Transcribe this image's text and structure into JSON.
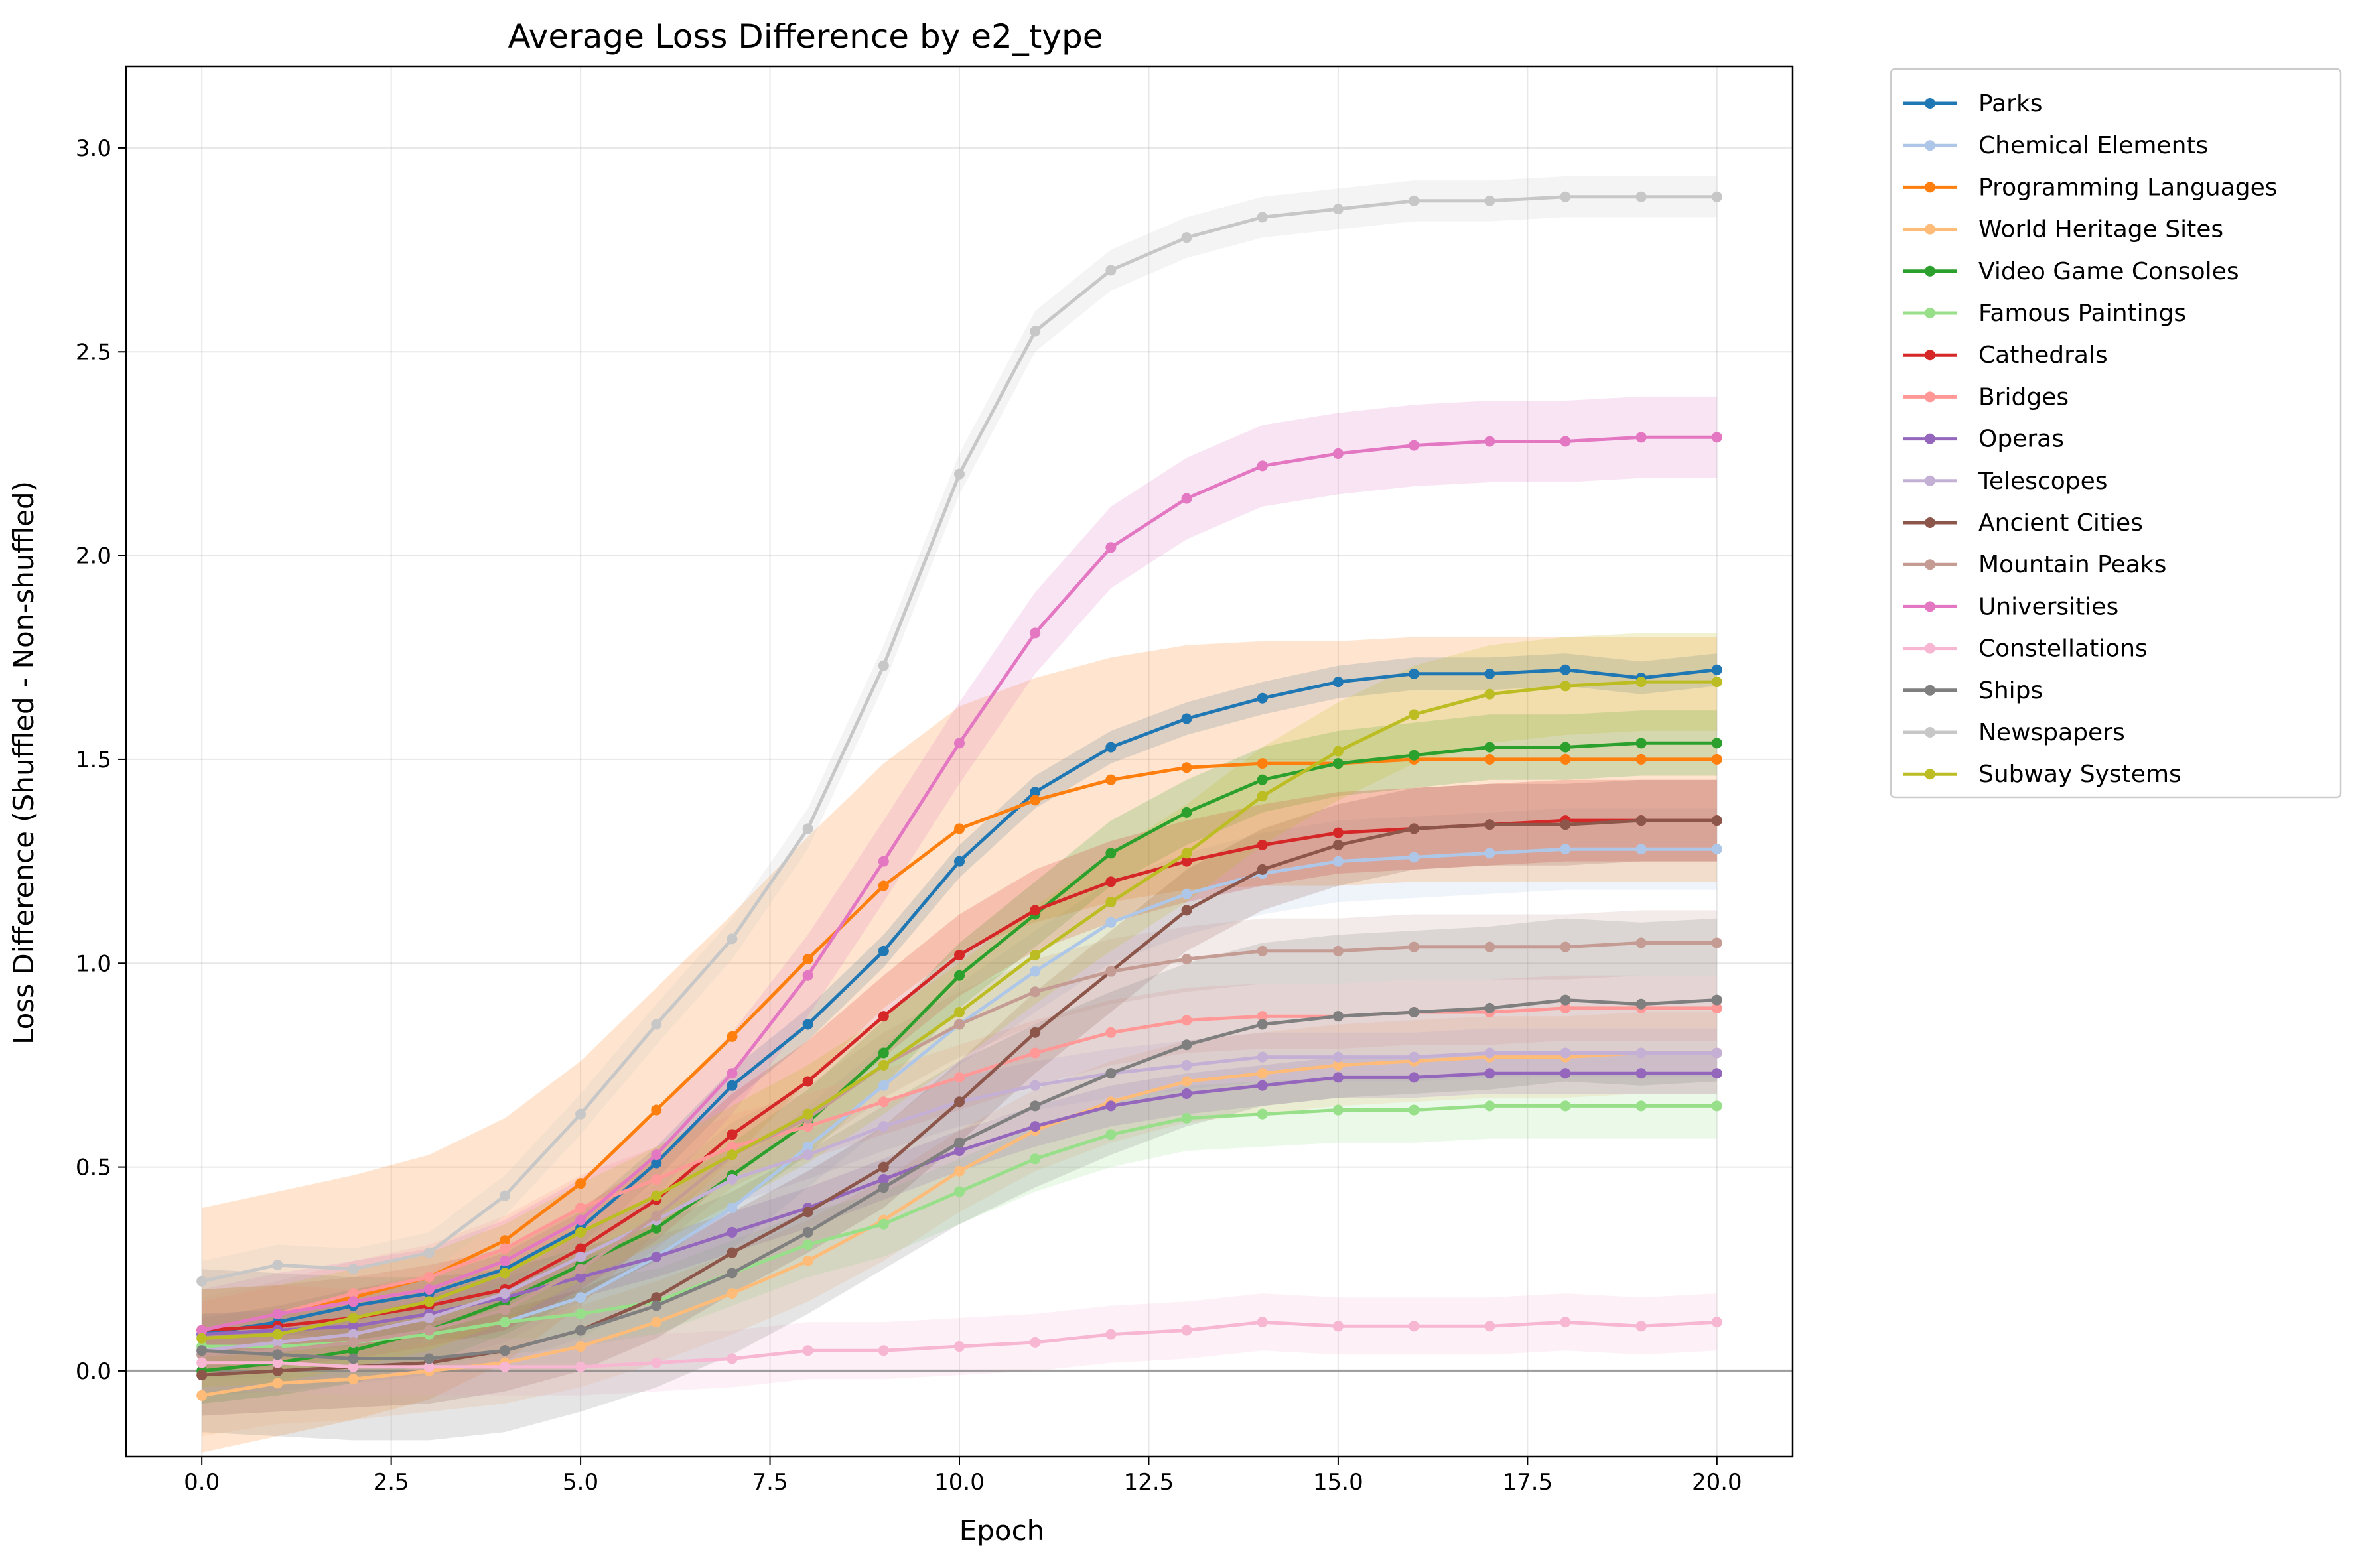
{
  "chart_data": {
    "type": "line",
    "title": "Average Loss Difference by e2_type",
    "xlabel": "Epoch",
    "ylabel": "Loss Difference (Shuffled - Non-shuffled)",
    "xlim": [
      -1.0,
      21.0
    ],
    "ylim": [
      -0.21,
      3.2
    ],
    "xticks": [
      0.0,
      2.5,
      5.0,
      7.5,
      10.0,
      12.5,
      15.0,
      17.5,
      20.0
    ],
    "xtick_labels": [
      "0.0",
      "2.5",
      "5.0",
      "7.5",
      "10.0",
      "12.5",
      "15.0",
      "17.5",
      "20.0"
    ],
    "yticks": [
      0.0,
      0.5,
      1.0,
      1.5,
      2.0,
      2.5,
      3.0
    ],
    "ytick_labels": [
      "0.0",
      "0.5",
      "1.0",
      "1.5",
      "2.0",
      "2.5",
      "3.0"
    ],
    "grid": true,
    "reference_line_y": 0.0,
    "legend_position": "outside-right",
    "x": [
      0,
      1,
      2,
      3,
      4,
      5,
      6,
      7,
      8,
      9,
      10,
      11,
      12,
      13,
      14,
      15,
      16,
      17,
      18,
      19,
      20
    ],
    "series": [
      {
        "name": "Parks",
        "color": "#1f77b4",
        "band": 0.04,
        "values": [
          0.09,
          0.12,
          0.16,
          0.19,
          0.25,
          0.35,
          0.51,
          0.7,
          0.85,
          1.03,
          1.25,
          1.42,
          1.53,
          1.6,
          1.65,
          1.69,
          1.71,
          1.71,
          1.72,
          1.7,
          1.72
        ]
      },
      {
        "name": "Chemical Elements",
        "color": "#aec7e8",
        "band": 0.1,
        "values": [
          0.04,
          0.05,
          0.07,
          0.09,
          0.12,
          0.18,
          0.28,
          0.4,
          0.55,
          0.7,
          0.85,
          0.98,
          1.1,
          1.17,
          1.22,
          1.25,
          1.26,
          1.27,
          1.28,
          1.28,
          1.28
        ]
      },
      {
        "name": "Programming Languages",
        "color": "#ff7f0e",
        "band": 0.3,
        "values": [
          0.1,
          0.14,
          0.18,
          0.23,
          0.32,
          0.46,
          0.64,
          0.82,
          1.01,
          1.19,
          1.33,
          1.4,
          1.45,
          1.48,
          1.49,
          1.49,
          1.5,
          1.5,
          1.5,
          1.5,
          1.5
        ]
      },
      {
        "name": "World Heritage Sites",
        "color": "#ffbb78",
        "band": 0.1,
        "values": [
          -0.06,
          -0.03,
          -0.02,
          0.0,
          0.02,
          0.06,
          0.12,
          0.19,
          0.27,
          0.37,
          0.49,
          0.59,
          0.66,
          0.71,
          0.73,
          0.75,
          0.76,
          0.77,
          0.77,
          0.78,
          0.78
        ]
      },
      {
        "name": "Video Game Consoles",
        "color": "#2ca02c",
        "band": 0.08,
        "values": [
          0.0,
          0.02,
          0.05,
          0.1,
          0.17,
          0.26,
          0.35,
          0.48,
          0.61,
          0.78,
          0.97,
          1.12,
          1.27,
          1.37,
          1.45,
          1.49,
          1.51,
          1.53,
          1.53,
          1.54,
          1.54
        ]
      },
      {
        "name": "Famous Paintings",
        "color": "#98df8a",
        "band": 0.08,
        "values": [
          0.06,
          0.06,
          0.07,
          0.09,
          0.12,
          0.14,
          0.17,
          0.24,
          0.31,
          0.36,
          0.44,
          0.52,
          0.58,
          0.62,
          0.63,
          0.64,
          0.64,
          0.65,
          0.65,
          0.65,
          0.65
        ]
      },
      {
        "name": "Cathedrals",
        "color": "#d62728",
        "band": 0.1,
        "values": [
          0.1,
          0.11,
          0.13,
          0.16,
          0.2,
          0.3,
          0.42,
          0.58,
          0.71,
          0.87,
          1.02,
          1.13,
          1.2,
          1.25,
          1.29,
          1.32,
          1.33,
          1.34,
          1.35,
          1.35,
          1.35
        ]
      },
      {
        "name": "Bridges",
        "color": "#ff9896",
        "band": 0.08,
        "values": [
          0.1,
          0.14,
          0.19,
          0.23,
          0.3,
          0.4,
          0.47,
          0.55,
          0.6,
          0.66,
          0.72,
          0.78,
          0.83,
          0.86,
          0.87,
          0.87,
          0.88,
          0.88,
          0.89,
          0.89,
          0.89
        ]
      },
      {
        "name": "Operas",
        "color": "#9467bd",
        "band": 0.05,
        "values": [
          0.09,
          0.1,
          0.11,
          0.14,
          0.18,
          0.23,
          0.28,
          0.34,
          0.4,
          0.47,
          0.54,
          0.6,
          0.65,
          0.68,
          0.7,
          0.72,
          0.72,
          0.73,
          0.73,
          0.73,
          0.73
        ]
      },
      {
        "name": "Telescopes",
        "color": "#c5b0d5",
        "band": 0.06,
        "values": [
          0.05,
          0.07,
          0.09,
          0.13,
          0.19,
          0.28,
          0.37,
          0.47,
          0.53,
          0.6,
          0.66,
          0.7,
          0.73,
          0.75,
          0.77,
          0.77,
          0.77,
          0.78,
          0.78,
          0.78,
          0.78
        ]
      },
      {
        "name": "Ancient Cities",
        "color": "#8c564b",
        "band": 0.1,
        "values": [
          -0.01,
          0.0,
          0.01,
          0.02,
          0.05,
          0.1,
          0.18,
          0.29,
          0.39,
          0.5,
          0.66,
          0.83,
          0.98,
          1.13,
          1.23,
          1.29,
          1.33,
          1.34,
          1.34,
          1.35,
          1.35
        ]
      },
      {
        "name": "Mountain Peaks",
        "color": "#c49c94",
        "band": 0.08,
        "values": [
          0.04,
          0.05,
          0.07,
          0.1,
          0.15,
          0.25,
          0.38,
          0.53,
          0.62,
          0.75,
          0.85,
          0.93,
          0.98,
          1.01,
          1.03,
          1.03,
          1.04,
          1.04,
          1.04,
          1.05,
          1.05
        ]
      },
      {
        "name": "Universities",
        "color": "#e377c2",
        "band": 0.1,
        "values": [
          0.1,
          0.14,
          0.17,
          0.2,
          0.27,
          0.37,
          0.53,
          0.73,
          0.97,
          1.25,
          1.54,
          1.81,
          2.02,
          2.14,
          2.22,
          2.25,
          2.27,
          2.28,
          2.28,
          2.29,
          2.29
        ]
      },
      {
        "name": "Constellations",
        "color": "#f7b6d2",
        "band": 0.07,
        "values": [
          0.02,
          0.02,
          0.01,
          0.01,
          0.01,
          0.01,
          0.02,
          0.03,
          0.05,
          0.05,
          0.06,
          0.07,
          0.09,
          0.1,
          0.12,
          0.11,
          0.11,
          0.11,
          0.12,
          0.11,
          0.12
        ]
      },
      {
        "name": "Ships",
        "color": "#7f7f7f",
        "band": 0.2,
        "values": [
          0.05,
          0.04,
          0.03,
          0.03,
          0.05,
          0.1,
          0.16,
          0.24,
          0.34,
          0.45,
          0.56,
          0.65,
          0.73,
          0.8,
          0.85,
          0.87,
          0.88,
          0.89,
          0.91,
          0.9,
          0.91
        ]
      },
      {
        "name": "Newspapers",
        "color": "#c7c7c7",
        "band": 0.05,
        "values": [
          0.22,
          0.26,
          0.25,
          0.29,
          0.43,
          0.63,
          0.85,
          1.06,
          1.33,
          1.73,
          2.2,
          2.55,
          2.7,
          2.78,
          2.83,
          2.85,
          2.87,
          2.87,
          2.88,
          2.88,
          2.88
        ]
      },
      {
        "name": "Subway Systems",
        "color": "#bcbd22",
        "band": 0.12,
        "values": [
          0.08,
          0.09,
          0.13,
          0.17,
          0.24,
          0.34,
          0.43,
          0.53,
          0.63,
          0.75,
          0.88,
          1.02,
          1.15,
          1.27,
          1.41,
          1.52,
          1.61,
          1.66,
          1.68,
          1.69,
          1.69
        ]
      }
    ]
  }
}
